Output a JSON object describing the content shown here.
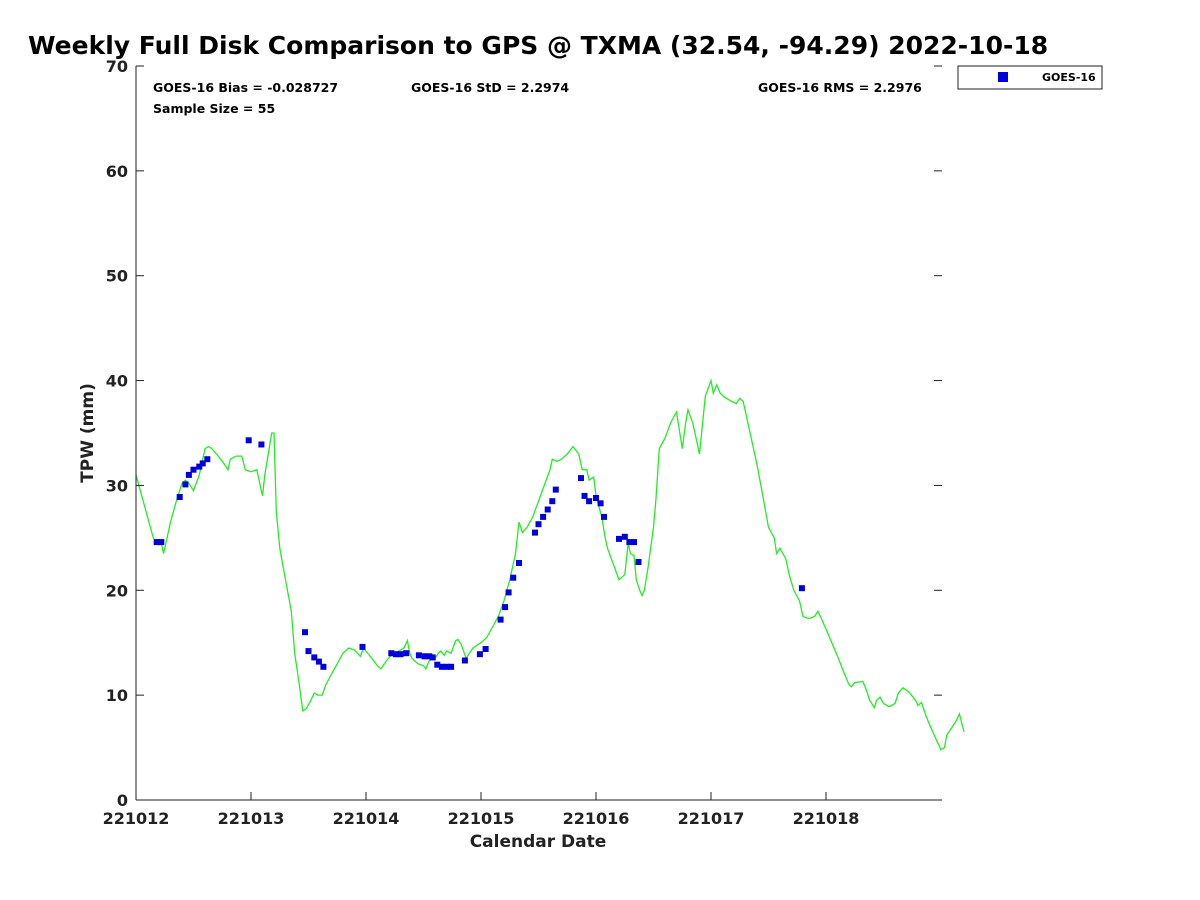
{
  "chart_data": {
    "type": "scatter+line",
    "title": "Weekly Full Disk Comparison to GPS @ TXMA (32.54, -94.29) 2022-10-18",
    "xlabel": "Calendar Date",
    "ylabel": "TPW (mm)",
    "xlim": [
      0,
      7
    ],
    "ylim": [
      0,
      70
    ],
    "x_ticks": [
      0,
      1,
      2,
      3,
      4,
      5,
      6
    ],
    "x_tick_labels": [
      "221012",
      "221013",
      "221014",
      "221015",
      "221016",
      "221017",
      "221018"
    ],
    "y_ticks": [
      0,
      10,
      20,
      30,
      40,
      50,
      60,
      70
    ],
    "y_tick_labels": [
      "0",
      "10",
      "20",
      "30",
      "40",
      "50",
      "60",
      "70"
    ],
    "stats": {
      "bias": "GOES-16 Bias = -0.028727",
      "std": "GOES-16 StD = 2.2974",
      "rms": "GOES-16 RMS = 2.2976",
      "sample": "Sample Size = 55"
    },
    "legend": {
      "label": "GOES-16",
      "position": "top-right-outside"
    },
    "colors": {
      "goes": "#0000dd",
      "gps": "#22ee22"
    },
    "gps_line": [
      [
        0.0,
        31.0
      ],
      [
        0.05,
        29.0
      ],
      [
        0.1,
        27.0
      ],
      [
        0.15,
        25.0
      ],
      [
        0.18,
        24.5
      ],
      [
        0.22,
        24.5
      ],
      [
        0.24,
        23.5
      ],
      [
        0.26,
        24.5
      ],
      [
        0.3,
        26.5
      ],
      [
        0.35,
        28.5
      ],
      [
        0.4,
        30.2
      ],
      [
        0.43,
        30.5
      ],
      [
        0.46,
        30.2
      ],
      [
        0.5,
        29.5
      ],
      [
        0.55,
        31.0
      ],
      [
        0.58,
        32.5
      ],
      [
        0.6,
        33.5
      ],
      [
        0.63,
        33.7
      ],
      [
        0.66,
        33.5
      ],
      [
        0.7,
        33.0
      ],
      [
        0.75,
        32.3
      ],
      [
        0.8,
        31.5
      ],
      [
        0.82,
        32.5
      ],
      [
        0.87,
        32.8
      ],
      [
        0.92,
        32.8
      ],
      [
        0.95,
        31.5
      ],
      [
        1.0,
        31.3
      ],
      [
        1.05,
        31.5
      ],
      [
        1.08,
        30.0
      ],
      [
        1.1,
        29.0
      ],
      [
        1.12,
        31.0
      ],
      [
        1.15,
        33.0
      ],
      [
        1.18,
        35.0
      ],
      [
        1.2,
        35.0
      ],
      [
        1.22,
        27.5
      ],
      [
        1.25,
        24.0
      ],
      [
        1.3,
        21.0
      ],
      [
        1.35,
        18.0
      ],
      [
        1.38,
        14.0
      ],
      [
        1.42,
        11.0
      ],
      [
        1.45,
        8.5
      ],
      [
        1.48,
        8.7
      ],
      [
        1.52,
        9.5
      ],
      [
        1.55,
        10.2
      ],
      [
        1.58,
        10.0
      ],
      [
        1.62,
        10.0
      ],
      [
        1.65,
        11.0
      ],
      [
        1.7,
        12.0
      ],
      [
        1.75,
        13.0
      ],
      [
        1.8,
        14.0
      ],
      [
        1.85,
        14.5
      ],
      [
        1.9,
        14.3
      ],
      [
        1.95,
        13.7
      ],
      [
        1.98,
        14.5
      ],
      [
        2.0,
        14.2
      ],
      [
        2.05,
        13.5
      ],
      [
        2.1,
        12.8
      ],
      [
        2.13,
        12.5
      ],
      [
        2.18,
        13.3
      ],
      [
        2.22,
        13.8
      ],
      [
        2.25,
        14.0
      ],
      [
        2.3,
        14.3
      ],
      [
        2.33,
        14.5
      ],
      [
        2.36,
        15.2
      ],
      [
        2.38,
        14.0
      ],
      [
        2.4,
        13.5
      ],
      [
        2.45,
        13.0
      ],
      [
        2.5,
        12.8
      ],
      [
        2.52,
        12.5
      ],
      [
        2.55,
        13.3
      ],
      [
        2.6,
        13.5
      ],
      [
        2.63,
        14.0
      ],
      [
        2.65,
        14.2
      ],
      [
        2.68,
        13.8
      ],
      [
        2.7,
        14.2
      ],
      [
        2.74,
        14.0
      ],
      [
        2.78,
        15.2
      ],
      [
        2.8,
        15.3
      ],
      [
        2.83,
        14.8
      ],
      [
        2.87,
        13.5
      ],
      [
        2.9,
        14.0
      ],
      [
        2.93,
        14.5
      ],
      [
        2.97,
        14.8
      ],
      [
        3.0,
        15.0
      ],
      [
        3.05,
        15.5
      ],
      [
        3.1,
        16.5
      ],
      [
        3.15,
        17.5
      ],
      [
        3.2,
        19.0
      ],
      [
        3.25,
        21.0
      ],
      [
        3.3,
        23.5
      ],
      [
        3.33,
        26.5
      ],
      [
        3.36,
        25.5
      ],
      [
        3.4,
        26.0
      ],
      [
        3.45,
        27.0
      ],
      [
        3.5,
        28.5
      ],
      [
        3.55,
        30.0
      ],
      [
        3.6,
        31.5
      ],
      [
        3.62,
        32.5
      ],
      [
        3.66,
        32.3
      ],
      [
        3.7,
        32.5
      ],
      [
        3.75,
        33.0
      ],
      [
        3.8,
        33.7
      ],
      [
        3.85,
        33.0
      ],
      [
        3.88,
        31.5
      ],
      [
        3.92,
        31.5
      ],
      [
        3.94,
        30.5
      ],
      [
        3.98,
        30.8
      ],
      [
        4.0,
        29.0
      ],
      [
        4.05,
        27.0
      ],
      [
        4.08,
        25.0
      ],
      [
        4.1,
        24.0
      ],
      [
        4.15,
        22.5
      ],
      [
        4.2,
        21.0
      ],
      [
        4.25,
        21.5
      ],
      [
        4.28,
        24.5
      ],
      [
        4.3,
        23.5
      ],
      [
        4.33,
        23.3
      ],
      [
        4.35,
        21.0
      ],
      [
        4.38,
        20.0
      ],
      [
        4.4,
        19.5
      ],
      [
        4.42,
        20.0
      ],
      [
        4.45,
        22.0
      ],
      [
        4.5,
        26.0
      ],
      [
        4.52,
        28.5
      ],
      [
        4.55,
        33.5
      ],
      [
        4.6,
        34.5
      ],
      [
        4.65,
        36.0
      ],
      [
        4.7,
        37.0
      ],
      [
        4.75,
        33.5
      ],
      [
        4.78,
        36.0
      ],
      [
        4.8,
        37.2
      ],
      [
        4.84,
        36.0
      ],
      [
        4.87,
        34.5
      ],
      [
        4.9,
        33.0
      ],
      [
        4.95,
        38.5
      ],
      [
        5.0,
        40.0
      ],
      [
        5.02,
        38.8
      ],
      [
        5.05,
        39.6
      ],
      [
        5.08,
        38.8
      ],
      [
        5.12,
        38.4
      ],
      [
        5.18,
        38.0
      ],
      [
        5.22,
        37.8
      ],
      [
        5.25,
        38.3
      ],
      [
        5.28,
        38.0
      ],
      [
        5.32,
        36.0
      ],
      [
        5.36,
        34.0
      ],
      [
        5.4,
        32.0
      ],
      [
        5.45,
        29.0
      ],
      [
        5.5,
        26.0
      ],
      [
        5.55,
        25.0
      ],
      [
        5.57,
        23.5
      ],
      [
        5.6,
        24.0
      ],
      [
        5.65,
        23.0
      ],
      [
        5.68,
        21.5
      ],
      [
        5.72,
        20.0
      ],
      [
        5.77,
        19.0
      ],
      [
        5.8,
        17.5
      ],
      [
        5.85,
        17.3
      ],
      [
        5.9,
        17.5
      ],
      [
        5.93,
        18.0
      ],
      [
        5.96,
        17.3
      ],
      [
        6.0,
        16.3
      ],
      [
        6.05,
        15.0
      ],
      [
        6.1,
        13.7
      ],
      [
        6.15,
        12.3
      ],
      [
        6.2,
        11.0
      ],
      [
        6.22,
        10.8
      ],
      [
        6.25,
        11.2
      ],
      [
        6.32,
        11.3
      ],
      [
        6.35,
        10.5
      ],
      [
        6.38,
        9.5
      ],
      [
        6.42,
        8.8
      ],
      [
        6.44,
        9.5
      ],
      [
        6.47,
        9.8
      ],
      [
        6.5,
        9.2
      ],
      [
        6.55,
        8.9
      ],
      [
        6.6,
        9.2
      ],
      [
        6.63,
        10.2
      ],
      [
        6.67,
        10.7
      ],
      [
        6.72,
        10.3
      ],
      [
        6.78,
        9.5
      ],
      [
        6.8,
        9.0
      ],
      [
        6.83,
        9.3
      ],
      [
        6.87,
        8.0
      ],
      [
        6.9,
        7.2
      ],
      [
        6.94,
        6.2
      ],
      [
        6.97,
        5.5
      ],
      [
        7.0,
        4.8
      ],
      [
        7.03,
        5.0
      ],
      [
        7.05,
        6.2
      ],
      [
        7.1,
        7.0
      ],
      [
        7.13,
        7.5
      ],
      [
        7.16,
        8.2
      ],
      [
        7.2,
        6.5
      ]
    ],
    "goes_points": [
      [
        0.18,
        24.6
      ],
      [
        0.22,
        24.6
      ],
      [
        0.38,
        28.9
      ],
      [
        0.43,
        30.1
      ],
      [
        0.46,
        31.0
      ],
      [
        0.5,
        31.5
      ],
      [
        0.55,
        31.8
      ],
      [
        0.58,
        32.1
      ],
      [
        0.62,
        32.5
      ],
      [
        0.98,
        34.3
      ],
      [
        1.09,
        33.9
      ],
      [
        1.47,
        16.0
      ],
      [
        1.5,
        14.2
      ],
      [
        1.55,
        13.6
      ],
      [
        1.59,
        13.2
      ],
      [
        1.63,
        12.7
      ],
      [
        1.97,
        14.6
      ],
      [
        2.22,
        14.0
      ],
      [
        2.26,
        13.9
      ],
      [
        2.3,
        13.9
      ],
      [
        2.35,
        14.0
      ],
      [
        2.46,
        13.8
      ],
      [
        2.51,
        13.7
      ],
      [
        2.55,
        13.7
      ],
      [
        2.58,
        13.6
      ],
      [
        2.62,
        12.9
      ],
      [
        2.66,
        12.7
      ],
      [
        2.7,
        12.7
      ],
      [
        2.74,
        12.7
      ],
      [
        2.86,
        13.3
      ],
      [
        2.99,
        13.9
      ],
      [
        3.04,
        14.4
      ],
      [
        3.17,
        17.2
      ],
      [
        3.21,
        18.4
      ],
      [
        3.24,
        19.8
      ],
      [
        3.28,
        21.2
      ],
      [
        3.33,
        22.6
      ],
      [
        3.47,
        25.5
      ],
      [
        3.5,
        26.3
      ],
      [
        3.54,
        27.0
      ],
      [
        3.58,
        27.7
      ],
      [
        3.62,
        28.5
      ],
      [
        3.65,
        29.6
      ],
      [
        3.87,
        30.7
      ],
      [
        3.9,
        29.0
      ],
      [
        3.94,
        28.5
      ],
      [
        4.0,
        28.8
      ],
      [
        4.04,
        28.3
      ],
      [
        4.07,
        27.0
      ],
      [
        4.2,
        24.9
      ],
      [
        4.25,
        25.1
      ],
      [
        4.29,
        24.6
      ],
      [
        4.33,
        24.6
      ],
      [
        4.37,
        22.7
      ],
      [
        5.79,
        20.2
      ]
    ]
  }
}
